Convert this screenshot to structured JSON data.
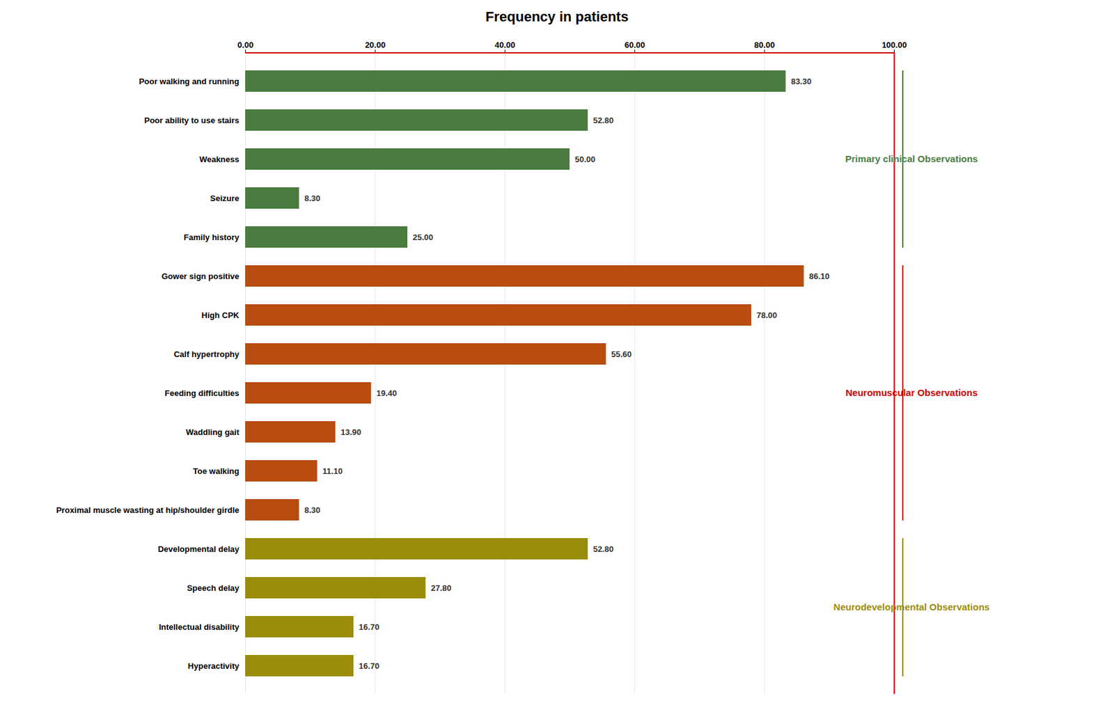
{
  "chart_data": {
    "type": "bar",
    "orientation": "horizontal",
    "title": "Frequency in patients",
    "categories": [
      "Poor walking and running",
      "Poor ability to use stairs",
      "Weakness",
      "Seizure",
      "Family history",
      "Gower sign positive",
      "High CPK",
      "Calf hypertrophy",
      "Feeding difficulties",
      "Waddling gait",
      "Toe walking",
      "Proximal muscle wasting at hip/shoulder girdle",
      "Developmental delay",
      "Speech delay",
      "Intellectual disability",
      "Hyperactivity"
    ],
    "values": [
      83.3,
      52.8,
      50.0,
      8.3,
      25.0,
      86.1,
      78.0,
      55.6,
      19.4,
      13.9,
      11.1,
      8.3,
      52.8,
      27.8,
      16.7,
      16.7
    ],
    "value_labels": [
      "83.30",
      "52.80",
      "50.00",
      "8.30",
      "25.00",
      "86.10",
      "78.00",
      "55.60",
      "19.40",
      "13.90",
      "11.10",
      "8.30",
      "52.80",
      "27.80",
      "16.70",
      "16.70"
    ],
    "data_labels": true,
    "colors": [
      "#4a7c3f",
      "#4a7c3f",
      "#4a7c3f",
      "#4a7c3f",
      "#4a7c3f",
      "#b84c11",
      "#b84c11",
      "#b84c11",
      "#b84c11",
      "#b84c11",
      "#b84c11",
      "#b84c11",
      "#9a8c0a",
      "#9a8c0a",
      "#9a8c0a",
      "#9a8c0a"
    ],
    "xlim": [
      0,
      100
    ],
    "xticks": [
      {
        "value": 0,
        "label": "0.00"
      },
      {
        "value": 20,
        "label": "20.00"
      },
      {
        "value": 40,
        "label": "40.00"
      },
      {
        "value": 60,
        "label": "60.00"
      },
      {
        "value": 80,
        "label": "80.00"
      },
      {
        "value": 100,
        "label": "100.00"
      }
    ],
    "grid": true,
    "reference_lines": [
      {
        "x": 100,
        "color": "#cc0000"
      }
    ],
    "annotations": [
      {
        "text": "Primary clinical Observations",
        "color": "#4a7c3f",
        "from": "Poor walking and running",
        "to": "Family history"
      },
      {
        "text": "Neuromuscular Observations",
        "color": "#cc0000",
        "from": "Gower sign positive",
        "to": "Proximal muscle wasting at hip/shoulder girdle"
      },
      {
        "text": "Neurodevelopmental Observations",
        "color": "#9a8c0a",
        "from": "Developmental delay",
        "to": "Hyperactivity"
      }
    ]
  }
}
